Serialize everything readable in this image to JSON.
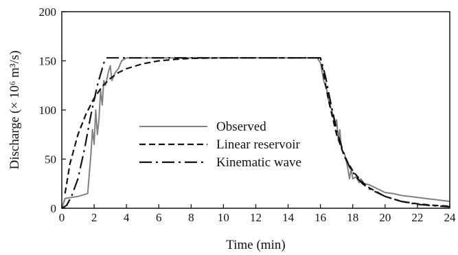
{
  "chart_data": {
    "type": "line",
    "xlabel": "Time (min)",
    "ylabel": "Discharge (× 10⁶ m³/s)",
    "xlim": [
      0,
      24
    ],
    "ylim": [
      0,
      200
    ],
    "xticks": [
      0,
      2,
      4,
      6,
      8,
      10,
      12,
      14,
      16,
      18,
      20,
      22,
      24
    ],
    "yticks": [
      0,
      50,
      100,
      150,
      200
    ],
    "grid": false,
    "legend_position": "center-left",
    "series": [
      {
        "name": "Observed",
        "style": "solid",
        "color": "#808080",
        "x": [
          0,
          0.2,
          1.0,
          1.6,
          1.8,
          1.9,
          2.0,
          2.1,
          2.2,
          2.3,
          2.4,
          2.5,
          2.6,
          2.7,
          2.9,
          3.0,
          3.1,
          3.3,
          3.5,
          3.7,
          4.0,
          6,
          8,
          10,
          12,
          14,
          15.8,
          16.0,
          16.2,
          16.4,
          16.5,
          16.7,
          16.9,
          17.0,
          17.1,
          17.2,
          17.3,
          17.5,
          17.7,
          17.8,
          17.9,
          18.0,
          18.2,
          18.4,
          18.5,
          18.7,
          19.0,
          19.5,
          20.0,
          20.5,
          21.0,
          21.5,
          22.0,
          22.5,
          23.0,
          23.5,
          24.0
        ],
        "y": [
          0,
          10,
          12,
          15,
          55,
          80,
          65,
          100,
          75,
          90,
          120,
          105,
          130,
          125,
          140,
          145,
          130,
          138,
          142,
          150,
          153,
          153,
          153,
          153,
          153,
          153,
          153,
          148,
          130,
          120,
          110,
          100,
          85,
          90,
          70,
          80,
          60,
          55,
          40,
          30,
          40,
          30,
          32,
          26,
          30,
          25,
          24,
          20,
          16,
          15,
          13,
          12,
          11,
          10,
          9,
          8,
          7
        ]
      },
      {
        "name": "Linear reservoir",
        "style": "dashed",
        "color": "#111111",
        "x": [
          0.2,
          0.5,
          1.0,
          1.5,
          2.0,
          2.5,
          3.0,
          3.5,
          4.0,
          5.0,
          6.0,
          7.0,
          8.0,
          10.0,
          12.0,
          14.0,
          16.0,
          16.5,
          17.0,
          17.5,
          18.0,
          18.5,
          19.0,
          20.0,
          21.0,
          22.0,
          23.0,
          24.0
        ],
        "y": [
          15,
          45,
          75,
          96,
          112,
          124,
          132,
          138,
          142,
          147,
          150,
          151.5,
          152.5,
          153,
          153,
          153,
          153,
          110,
          75,
          52,
          38,
          28,
          21,
          12,
          7,
          4.5,
          3,
          2
        ]
      },
      {
        "name": "Kinematic wave",
        "style": "dashdot",
        "color": "#111111",
        "x": [
          0,
          0.3,
          0.6,
          1.0,
          1.4,
          1.8,
          2.2,
          2.6,
          2.8,
          2.9,
          3.0,
          4.0,
          6.0,
          8.0,
          10.0,
          12.0,
          14.0,
          16.0,
          16.3,
          16.6,
          17.0,
          17.4,
          17.8,
          18.2,
          18.6,
          19.0,
          20.0,
          21.0,
          22.0,
          23.0,
          24.0
        ],
        "y": [
          0,
          3,
          12,
          30,
          60,
          95,
          125,
          148,
          153,
          153,
          153,
          153,
          153,
          153,
          153,
          153,
          153,
          153,
          135,
          110,
          80,
          58,
          42,
          32,
          25,
          20,
          12,
          7,
          4,
          2.5,
          1.5
        ]
      }
    ]
  }
}
